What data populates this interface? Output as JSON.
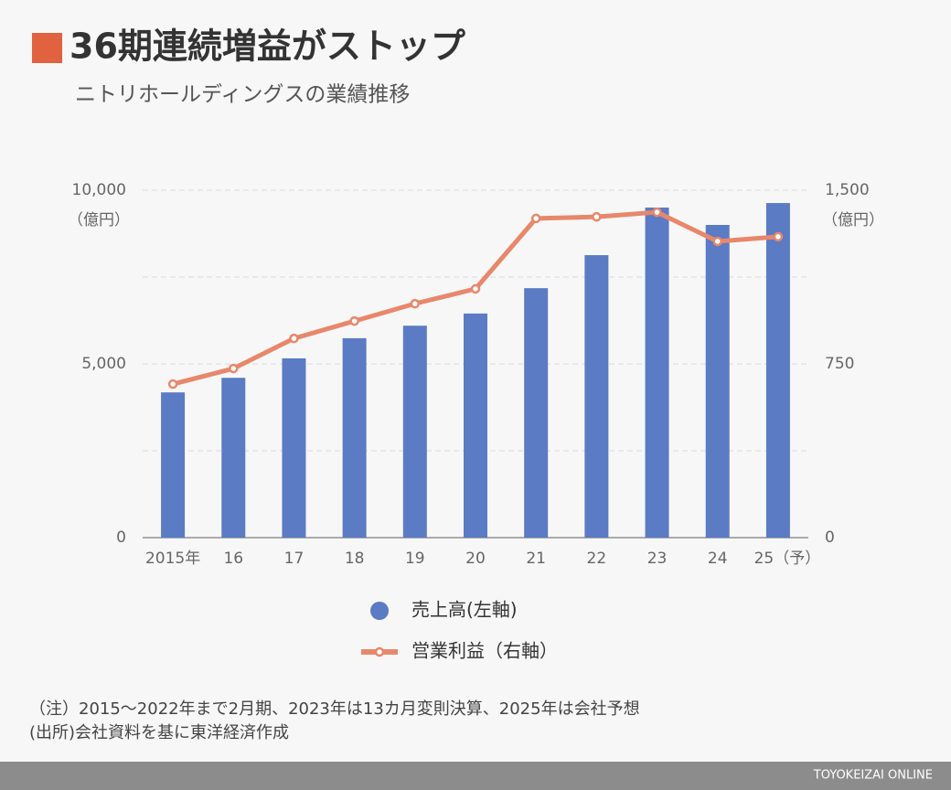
{
  "chart_data": {
    "type": "bar_line",
    "title": "36期連続増益がストップ",
    "subtitle": "ニトリホールディングスの業績推移",
    "categories": [
      "2015年",
      "16",
      "17",
      "18",
      "19",
      "20",
      "21",
      "22",
      "23",
      "24",
      "25（予）"
    ],
    "series": [
      {
        "name": "売上高(左軸)",
        "type": "bar",
        "color": "#5b7bc4",
        "axis": "y",
        "values": [
          4180,
          4600,
          5160,
          5740,
          6100,
          6450,
          7180,
          8130,
          9500,
          9000,
          9630
        ]
      },
      {
        "name": "営業利益（右軸）",
        "type": "line",
        "color": "#e8876b",
        "axis": "y2",
        "values": [
          663,
          730,
          860,
          935,
          1010,
          1074,
          1378,
          1385,
          1405,
          1279,
          1299
        ]
      }
    ],
    "ylim": [
      0,
      10000
    ],
    "yticks": [
      0,
      {
        "value": 5000,
        "label": "5,000"
      },
      {
        "value": 10000,
        "label": "10,000"
      }
    ],
    "y_unit": "（億円）",
    "y2lim": [
      0,
      1500
    ],
    "y2ticks": [
      0,
      750,
      {
        "value": 1500,
        "label": "1,500"
      }
    ],
    "y2_unit": "（億円）",
    "grid": true,
    "notes": [
      "（注）2015～2022年まで2月期、2023年は13カ月変則決算、2025年は会社予想",
      "(出所)会社資料を基に東洋経済作成"
    ],
    "credit": "TOYOKEIZAI ONLINE"
  }
}
